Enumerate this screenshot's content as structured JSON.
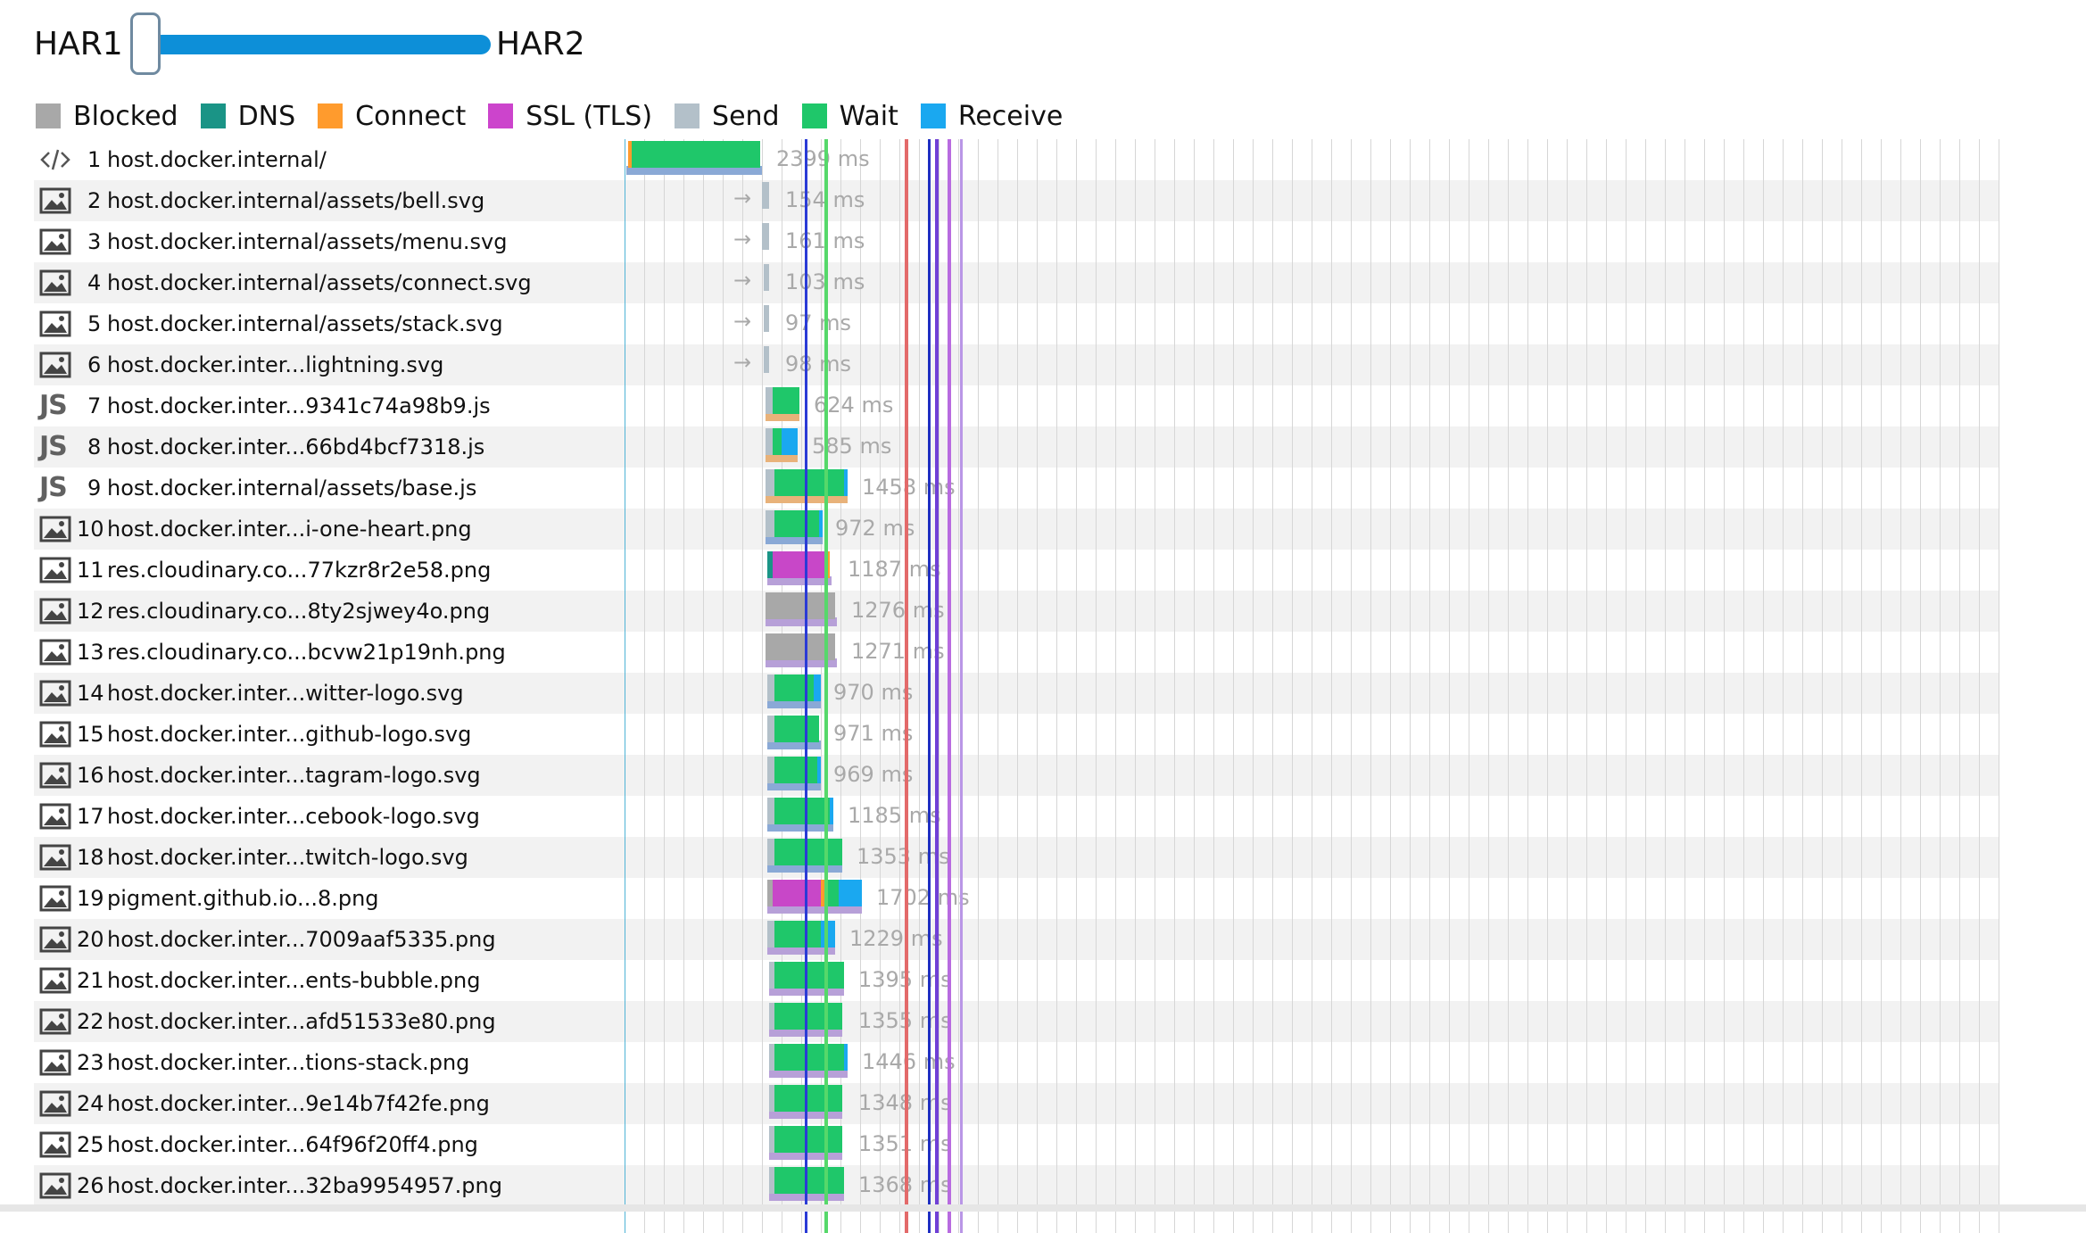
{
  "slider": {
    "left_label": "HAR1",
    "right_label": "HAR2"
  },
  "legend": [
    {
      "label": "Blocked",
      "color": "#a8a8a8"
    },
    {
      "label": "DNS",
      "color": "#1a9486"
    },
    {
      "label": "Connect",
      "color": "#ff9b2d"
    },
    {
      "label": "SSL (TLS)",
      "color": "#cc44cc"
    },
    {
      "label": "Send",
      "color": "#b3c0c9"
    },
    {
      "label": "Wait",
      "color": "#1fc76a"
    },
    {
      "label": "Receive",
      "color": "#1aa8f0"
    }
  ],
  "rows": [
    {
      "num": "1",
      "url": "host.docker.internal/",
      "time": "2399 ms",
      "icon": "code-icon",
      "cached": false
    },
    {
      "num": "2",
      "url": "host.docker.internal/assets/bell.svg",
      "time": "154 ms",
      "icon": "image-icon",
      "cached": true
    },
    {
      "num": "3",
      "url": "host.docker.internal/assets/menu.svg",
      "time": "161 ms",
      "icon": "image-icon",
      "cached": true
    },
    {
      "num": "4",
      "url": "host.docker.internal/assets/connect.svg",
      "time": "103 ms",
      "icon": "image-icon",
      "cached": true
    },
    {
      "num": "5",
      "url": "host.docker.internal/assets/stack.svg",
      "time": "97 ms",
      "icon": "image-icon",
      "cached": true
    },
    {
      "num": "6",
      "url": "host.docker.inter...lightning.svg",
      "time": "98 ms",
      "icon": "image-icon",
      "cached": true
    },
    {
      "num": "7",
      "url": "host.docker.inter...9341c74a98b9.js",
      "time": "624 ms",
      "icon": "js-icon",
      "cached": false
    },
    {
      "num": "8",
      "url": "host.docker.inter...66bd4bcf7318.js",
      "time": "585 ms",
      "icon": "js-icon",
      "cached": false
    },
    {
      "num": "9",
      "url": "host.docker.internal/assets/base.js",
      "time": "1458 ms",
      "icon": "js-icon",
      "cached": false
    },
    {
      "num": "10",
      "url": "host.docker.inter...i-one-heart.png",
      "time": "972 ms",
      "icon": "image-icon",
      "cached": false
    },
    {
      "num": "11",
      "url": "res.cloudinary.co...77kzr8r2e58.png",
      "time": "1187 ms",
      "icon": "image-icon",
      "cached": false
    },
    {
      "num": "12",
      "url": "res.cloudinary.co...8ty2sjwey4o.png",
      "time": "1276 ms",
      "icon": "image-icon",
      "cached": false
    },
    {
      "num": "13",
      "url": "res.cloudinary.co...bcvw21p19nh.png",
      "time": "1271 ms",
      "icon": "image-icon",
      "cached": false
    },
    {
      "num": "14",
      "url": "host.docker.inter...witter-logo.svg",
      "time": "970 ms",
      "icon": "image-icon",
      "cached": false
    },
    {
      "num": "15",
      "url": "host.docker.inter...github-logo.svg",
      "time": "971 ms",
      "icon": "image-icon",
      "cached": false
    },
    {
      "num": "16",
      "url": "host.docker.inter...tagram-logo.svg",
      "time": "969 ms",
      "icon": "image-icon",
      "cached": false
    },
    {
      "num": "17",
      "url": "host.docker.inter...cebook-logo.svg",
      "time": "1185 ms",
      "icon": "image-icon",
      "cached": false
    },
    {
      "num": "18",
      "url": "host.docker.inter...twitch-logo.svg",
      "time": "1353 ms",
      "icon": "image-icon",
      "cached": false
    },
    {
      "num": "19",
      "url": "pigment.github.io...8.png",
      "time": "1702 ms",
      "icon": "image-icon",
      "cached": false
    },
    {
      "num": "20",
      "url": "host.docker.inter...7009aaf5335.png",
      "time": "1229 ms",
      "icon": "image-icon",
      "cached": false
    },
    {
      "num": "21",
      "url": "host.docker.inter...ents-bubble.png",
      "time": "1395 ms",
      "icon": "image-icon",
      "cached": false
    },
    {
      "num": "22",
      "url": "host.docker.inter...afd51533e80.png",
      "time": "1355 ms",
      "icon": "image-icon",
      "cached": false
    },
    {
      "num": "23",
      "url": "host.docker.inter...tions-stack.png",
      "time": "1446 ms",
      "icon": "image-icon",
      "cached": false
    },
    {
      "num": "24",
      "url": "host.docker.inter...9e14b7f42fe.png",
      "time": "1348 ms",
      "icon": "image-icon",
      "cached": false
    },
    {
      "num": "25",
      "url": "host.docker.inter...64f96f20ff4.png",
      "time": "1351 ms",
      "icon": "image-icon",
      "cached": false
    },
    {
      "num": "26",
      "url": "host.docker.inter...32ba9954957.png",
      "time": "1368 ms",
      "icon": "image-icon",
      "cached": false
    }
  ]
}
